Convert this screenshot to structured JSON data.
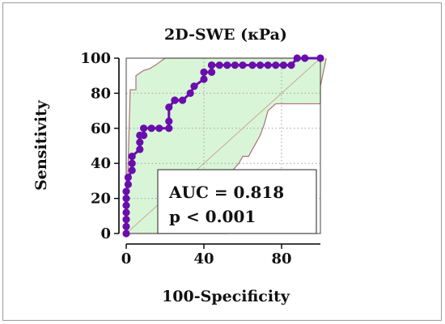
{
  "chart_data": {
    "type": "line",
    "title": "2D-SWE (кPa)",
    "xlabel": "100-Specificity",
    "ylabel": "Sensitivity",
    "xlim": [
      0,
      100
    ],
    "ylim": [
      0,
      100
    ],
    "xticks": [
      0,
      40,
      80
    ],
    "yticks": [
      0,
      20,
      40,
      60,
      80,
      100
    ],
    "grid": true,
    "annotations": [
      "AUC = 0.818",
      "p < 0.001"
    ],
    "colors": {
      "roc": "#6a0dad",
      "ci_band": "#d8f5d8",
      "ci_line": "#b07070",
      "diagonal": "#c9a896",
      "grid": "#a0a0a0"
    },
    "series": [
      {
        "role": "roc-curve",
        "x": [
          0,
          0,
          0,
          0,
          0,
          0,
          0,
          1,
          1,
          3,
          3,
          3,
          7,
          7,
          7,
          9,
          9,
          13,
          17,
          22,
          22,
          22,
          25,
          25,
          29,
          33,
          35,
          40,
          40,
          44,
          44,
          44,
          48,
          52,
          56,
          60,
          65,
          69,
          73,
          77,
          81,
          85,
          88,
          92,
          100
        ],
        "y": [
          0,
          4,
          8,
          12,
          16,
          20,
          24,
          28,
          32,
          36,
          40,
          44,
          48,
          52,
          56,
          56,
          60,
          60,
          60,
          60,
          64,
          72,
          76,
          76,
          76,
          80,
          84,
          88,
          92,
          92,
          96,
          96,
          96,
          96,
          96,
          96,
          96,
          96,
          96,
          96,
          96,
          96,
          100,
          100,
          100
        ]
      },
      {
        "role": "ci-upper",
        "x": [
          0,
          2,
          2,
          5,
          5,
          9,
          12,
          15,
          20,
          100,
          100
        ],
        "y": [
          0,
          80,
          82,
          82,
          90,
          93,
          94,
          96,
          100,
          100,
          100
        ]
      },
      {
        "role": "ci-lower",
        "x": [
          0,
          3,
          26,
          26,
          34,
          44,
          44,
          52,
          52,
          54,
          54,
          58,
          60,
          63,
          65,
          67,
          69,
          71,
          73,
          77,
          100,
          100,
          103
        ],
        "y": [
          0,
          0,
          0,
          0,
          0,
          0,
          0,
          0,
          22,
          22,
          35,
          40,
          44,
          44,
          48,
          52,
          56,
          62,
          70,
          74,
          74,
          84,
          100
        ]
      }
    ]
  }
}
